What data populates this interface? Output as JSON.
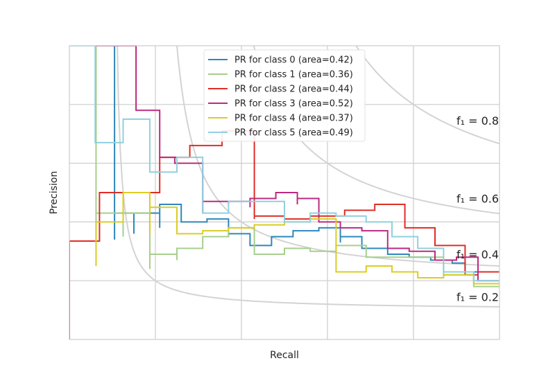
{
  "chart_data": {
    "type": "line",
    "xlabel": "Recall",
    "ylabel": "Precision",
    "xlim": [
      0,
      1
    ],
    "ylim": [
      0,
      1
    ],
    "grid": true,
    "tick_labels_visible": false,
    "legend_placement": "top-center",
    "iso_f1_labels": [
      "f₁ = 0.8",
      "f₁ = 0.6",
      "f₁ = 0.4",
      "f₁ = 0.2"
    ],
    "iso_f1_values": [
      0.8,
      0.6,
      0.4,
      0.2
    ],
    "iso_f1_color": "#d3d3d3",
    "series": [
      {
        "name": "PR for class 0 (area=0.42)",
        "color": "#2d87bb",
        "points": [
          [
            0.105,
            1.0
          ],
          [
            0.105,
            0.34
          ],
          [
            0.105,
            0.43
          ],
          [
            0.15,
            0.43
          ],
          [
            0.15,
            0.36
          ],
          [
            0.15,
            0.43
          ],
          [
            0.21,
            0.43
          ],
          [
            0.21,
            0.38
          ],
          [
            0.21,
            0.46
          ],
          [
            0.26,
            0.46
          ],
          [
            0.26,
            0.4
          ],
          [
            0.32,
            0.4
          ],
          [
            0.32,
            0.41
          ],
          [
            0.37,
            0.41
          ],
          [
            0.37,
            0.35
          ],
          [
            0.37,
            0.36
          ],
          [
            0.42,
            0.36
          ],
          [
            0.42,
            0.32
          ],
          [
            0.47,
            0.32
          ],
          [
            0.47,
            0.35
          ],
          [
            0.52,
            0.35
          ],
          [
            0.52,
            0.37
          ],
          [
            0.58,
            0.37
          ],
          [
            0.58,
            0.38
          ],
          [
            0.63,
            0.38
          ],
          [
            0.63,
            0.33
          ],
          [
            0.63,
            0.35
          ],
          [
            0.68,
            0.35
          ],
          [
            0.68,
            0.31
          ],
          [
            0.74,
            0.31
          ],
          [
            0.74,
            0.29
          ],
          [
            0.79,
            0.29
          ],
          [
            0.79,
            0.28
          ],
          [
            0.84,
            0.28
          ],
          [
            0.84,
            0.27
          ],
          [
            0.89,
            0.27
          ],
          [
            0.89,
            0.26
          ],
          [
            0.92,
            0.26
          ],
          [
            0.92,
            0.23
          ],
          [
            1.0,
            0.23
          ]
        ]
      },
      {
        "name": "PR for class 1 (area=0.36)",
        "color": "#a6cf8c",
        "points": [
          [
            0.0,
            1.0
          ],
          [
            0.062,
            1.0
          ],
          [
            0.062,
            0.34
          ],
          [
            0.062,
            0.43
          ],
          [
            0.125,
            0.43
          ],
          [
            0.125,
            0.35
          ],
          [
            0.125,
            0.43
          ],
          [
            0.187,
            0.43
          ],
          [
            0.187,
            0.24
          ],
          [
            0.187,
            0.29
          ],
          [
            0.25,
            0.29
          ],
          [
            0.25,
            0.27
          ],
          [
            0.25,
            0.31
          ],
          [
            0.31,
            0.31
          ],
          [
            0.31,
            0.35
          ],
          [
            0.37,
            0.35
          ],
          [
            0.37,
            0.38
          ],
          [
            0.43,
            0.38
          ],
          [
            0.43,
            0.29
          ],
          [
            0.43,
            0.29
          ],
          [
            0.5,
            0.29
          ],
          [
            0.5,
            0.31
          ],
          [
            0.56,
            0.31
          ],
          [
            0.56,
            0.3
          ],
          [
            0.62,
            0.3
          ],
          [
            0.62,
            0.32
          ],
          [
            0.69,
            0.32
          ],
          [
            0.69,
            0.28
          ],
          [
            0.75,
            0.28
          ],
          [
            0.75,
            0.28
          ],
          [
            0.81,
            0.28
          ],
          [
            0.81,
            0.28
          ],
          [
            0.87,
            0.28
          ],
          [
            0.87,
            0.22
          ],
          [
            0.94,
            0.22
          ],
          [
            0.94,
            0.18
          ],
          [
            1.0,
            0.18
          ]
        ]
      },
      {
        "name": "PR for class 2 (area=0.44)",
        "color": "#de2d26",
        "points": [
          [
            0.0,
            0.0
          ],
          [
            0.0,
            0.335
          ],
          [
            0.07,
            0.335
          ],
          [
            0.07,
            0.5
          ],
          [
            0.21,
            0.5
          ],
          [
            0.21,
            0.62
          ],
          [
            0.28,
            0.62
          ],
          [
            0.28,
            0.66
          ],
          [
            0.355,
            0.66
          ],
          [
            0.355,
            0.71
          ],
          [
            0.43,
            0.71
          ],
          [
            0.43,
            0.41
          ],
          [
            0.43,
            0.42
          ],
          [
            0.5,
            0.42
          ],
          [
            0.5,
            0.41
          ],
          [
            0.56,
            0.41
          ],
          [
            0.56,
            0.42
          ],
          [
            0.64,
            0.42
          ],
          [
            0.64,
            0.44
          ],
          [
            0.71,
            0.44
          ],
          [
            0.71,
            0.46
          ],
          [
            0.78,
            0.46
          ],
          [
            0.78,
            0.38
          ],
          [
            0.85,
            0.38
          ],
          [
            0.85,
            0.32
          ],
          [
            0.92,
            0.32
          ],
          [
            0.92,
            0.22
          ],
          [
            0.95,
            0.22
          ],
          [
            0.95,
            0.23
          ],
          [
            1.0,
            0.23
          ]
        ]
      },
      {
        "name": "PR for class 3 (area=0.52)",
        "color": "#bb2a7e",
        "points": [
          [
            0.0,
            1.0
          ],
          [
            0.155,
            1.0
          ],
          [
            0.155,
            0.78
          ],
          [
            0.21,
            0.78
          ],
          [
            0.21,
            0.62
          ],
          [
            0.245,
            0.62
          ],
          [
            0.245,
            0.6
          ],
          [
            0.31,
            0.6
          ],
          [
            0.31,
            0.43
          ],
          [
            0.31,
            0.47
          ],
          [
            0.37,
            0.47
          ],
          [
            0.37,
            0.46
          ],
          [
            0.37,
            0.47
          ],
          [
            0.42,
            0.47
          ],
          [
            0.42,
            0.45
          ],
          [
            0.42,
            0.48
          ],
          [
            0.48,
            0.48
          ],
          [
            0.48,
            0.5
          ],
          [
            0.53,
            0.5
          ],
          [
            0.53,
            0.46
          ],
          [
            0.53,
            0.48
          ],
          [
            0.58,
            0.48
          ],
          [
            0.58,
            0.4
          ],
          [
            0.63,
            0.4
          ],
          [
            0.63,
            0.38
          ],
          [
            0.68,
            0.38
          ],
          [
            0.68,
            0.37
          ],
          [
            0.74,
            0.37
          ],
          [
            0.74,
            0.31
          ],
          [
            0.79,
            0.31
          ],
          [
            0.79,
            0.3
          ],
          [
            0.85,
            0.3
          ],
          [
            0.85,
            0.27
          ],
          [
            0.9,
            0.27
          ],
          [
            0.9,
            0.28
          ],
          [
            0.95,
            0.28
          ],
          [
            0.95,
            0.2
          ],
          [
            1.0,
            0.2
          ]
        ]
      },
      {
        "name": "PR for class 4 (area=0.37)",
        "color": "#dccc22",
        "points": [
          [
            0.062,
            0.25
          ],
          [
            0.062,
            0.4
          ],
          [
            0.125,
            0.4
          ],
          [
            0.125,
            0.5
          ],
          [
            0.187,
            0.5
          ],
          [
            0.187,
            0.36
          ],
          [
            0.187,
            0.45
          ],
          [
            0.25,
            0.45
          ],
          [
            0.25,
            0.36
          ],
          [
            0.25,
            0.36
          ],
          [
            0.31,
            0.36
          ],
          [
            0.31,
            0.37
          ],
          [
            0.37,
            0.37
          ],
          [
            0.37,
            0.38
          ],
          [
            0.43,
            0.38
          ],
          [
            0.43,
            0.39
          ],
          [
            0.5,
            0.39
          ],
          [
            0.5,
            0.4
          ],
          [
            0.56,
            0.4
          ],
          [
            0.56,
            0.41
          ],
          [
            0.62,
            0.41
          ],
          [
            0.62,
            0.23
          ],
          [
            0.69,
            0.23
          ],
          [
            0.69,
            0.25
          ],
          [
            0.75,
            0.25
          ],
          [
            0.75,
            0.23
          ],
          [
            0.81,
            0.23
          ],
          [
            0.81,
            0.21
          ],
          [
            0.87,
            0.21
          ],
          [
            0.87,
            0.22
          ],
          [
            0.94,
            0.22
          ],
          [
            0.94,
            0.19
          ],
          [
            1.0,
            0.19
          ]
        ]
      },
      {
        "name": "PR for class 5 (area=0.49)",
        "color": "#8fd0df",
        "points": [
          [
            0.0,
            1.0
          ],
          [
            0.06,
            1.0
          ],
          [
            0.06,
            0.67
          ],
          [
            0.125,
            0.67
          ],
          [
            0.125,
            0.75
          ],
          [
            0.187,
            0.75
          ],
          [
            0.187,
            0.57
          ],
          [
            0.25,
            0.57
          ],
          [
            0.25,
            0.62
          ],
          [
            0.31,
            0.62
          ],
          [
            0.31,
            0.43
          ],
          [
            0.37,
            0.43
          ],
          [
            0.37,
            0.47
          ],
          [
            0.43,
            0.47
          ],
          [
            0.43,
            0.47
          ],
          [
            0.5,
            0.47
          ],
          [
            0.5,
            0.4
          ],
          [
            0.56,
            0.4
          ],
          [
            0.56,
            0.43
          ],
          [
            0.62,
            0.43
          ],
          [
            0.62,
            0.42
          ],
          [
            0.69,
            0.42
          ],
          [
            0.69,
            0.4
          ],
          [
            0.75,
            0.4
          ],
          [
            0.75,
            0.35
          ],
          [
            0.81,
            0.35
          ],
          [
            0.81,
            0.31
          ],
          [
            0.87,
            0.31
          ],
          [
            0.87,
            0.23
          ],
          [
            0.94,
            0.23
          ],
          [
            0.94,
            0.2
          ],
          [
            1.0,
            0.2
          ]
        ]
      }
    ]
  }
}
